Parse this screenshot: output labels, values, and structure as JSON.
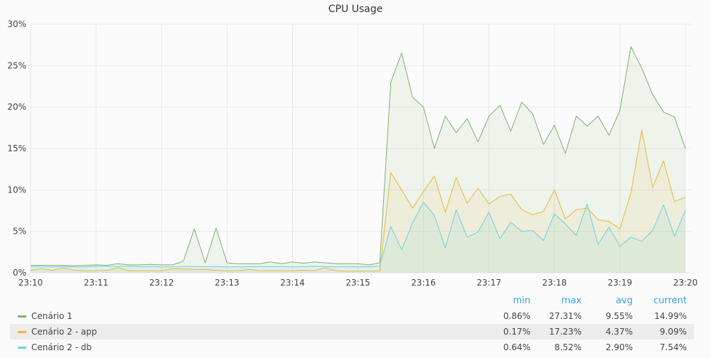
{
  "panel": {
    "title": "CPU Usage"
  },
  "colors": {
    "grid": "#e9e9e9",
    "axis_text": "#444444",
    "header_text": "#33a2e5"
  },
  "legend": {
    "headers": {
      "min": "min",
      "max": "max",
      "avg": "avg",
      "current": "current"
    },
    "rows": [
      {
        "name": "Cenário 1",
        "min": "0.86%",
        "max": "27.31%",
        "avg": "9.55%",
        "current": "14.99%"
      },
      {
        "name": "Cenário 2 - app",
        "min": "0.17%",
        "max": "17.23%",
        "avg": "4.37%",
        "current": "9.09%"
      },
      {
        "name": "Cenário 2 - db",
        "min": "0.64%",
        "max": "8.52%",
        "avg": "2.90%",
        "current": "7.54%"
      }
    ]
  },
  "chart_data": {
    "type": "area",
    "title": "CPU Usage",
    "x_unit": "minutes",
    "x_range": [
      "23:10",
      "23:20"
    ],
    "y_range": [
      0,
      30
    ],
    "ylim": [
      0,
      30
    ],
    "x_ticks": [
      "23:10",
      "23:11",
      "23:12",
      "23:13",
      "23:14",
      "23:15",
      "23:16",
      "23:17",
      "23:18",
      "23:19",
      "23:20"
    ],
    "y_ticks": [
      "0%",
      "5%",
      "10%",
      "15%",
      "20%",
      "25%",
      "30%"
    ],
    "x_tick_values": [
      0,
      1,
      2,
      3,
      4,
      5,
      6,
      7,
      8,
      9,
      10
    ],
    "y_tick_values": [
      0,
      5,
      10,
      15,
      20,
      25,
      30
    ],
    "grid": true,
    "legend_position": "bottom",
    "series": [
      {
        "name": "Cenário 1",
        "color": "#7eb26d",
        "points": [
          [
            0.0,
            0.9
          ],
          [
            0.167,
            0.9
          ],
          [
            0.333,
            0.9
          ],
          [
            0.5,
            0.9
          ],
          [
            0.667,
            0.85
          ],
          [
            0.833,
            0.9
          ],
          [
            1.0,
            0.95
          ],
          [
            1.167,
            0.9
          ],
          [
            1.333,
            1.1
          ],
          [
            1.5,
            0.95
          ],
          [
            1.667,
            0.95
          ],
          [
            1.833,
            1.0
          ],
          [
            2.0,
            0.95
          ],
          [
            2.167,
            0.95
          ],
          [
            2.333,
            1.4
          ],
          [
            2.5,
            5.3
          ],
          [
            2.667,
            1.2
          ],
          [
            2.833,
            5.4
          ],
          [
            3.0,
            1.2
          ],
          [
            3.167,
            1.1
          ],
          [
            3.333,
            1.1
          ],
          [
            3.5,
            1.1
          ],
          [
            3.667,
            1.3
          ],
          [
            3.833,
            1.1
          ],
          [
            4.0,
            1.3
          ],
          [
            4.167,
            1.15
          ],
          [
            4.333,
            1.3
          ],
          [
            4.5,
            1.2
          ],
          [
            4.667,
            1.1
          ],
          [
            4.833,
            1.1
          ],
          [
            5.0,
            1.1
          ],
          [
            5.167,
            0.95
          ],
          [
            5.333,
            1.2
          ],
          [
            5.5,
            23.0
          ],
          [
            5.667,
            26.5
          ],
          [
            5.833,
            21.2
          ],
          [
            6.0,
            20.0
          ],
          [
            6.167,
            15.0
          ],
          [
            6.333,
            18.9
          ],
          [
            6.5,
            16.9
          ],
          [
            6.667,
            18.6
          ],
          [
            6.833,
            15.8
          ],
          [
            7.0,
            18.9
          ],
          [
            7.167,
            20.2
          ],
          [
            7.333,
            17.1
          ],
          [
            7.5,
            20.6
          ],
          [
            7.667,
            19.2
          ],
          [
            7.833,
            15.5
          ],
          [
            8.0,
            17.8
          ],
          [
            8.167,
            14.4
          ],
          [
            8.333,
            18.9
          ],
          [
            8.5,
            17.7
          ],
          [
            8.667,
            18.9
          ],
          [
            8.833,
            16.6
          ],
          [
            9.0,
            19.6
          ],
          [
            9.167,
            27.3
          ],
          [
            9.333,
            24.7
          ],
          [
            9.5,
            21.5
          ],
          [
            9.667,
            19.4
          ],
          [
            9.833,
            18.8
          ],
          [
            10.0,
            14.99
          ]
        ]
      },
      {
        "name": "Cenário 2 - app",
        "color": "#eab839",
        "points": [
          [
            0.0,
            0.3
          ],
          [
            0.167,
            0.5
          ],
          [
            0.333,
            0.3
          ],
          [
            0.5,
            0.6
          ],
          [
            0.667,
            0.3
          ],
          [
            0.833,
            0.25
          ],
          [
            1.0,
            0.25
          ],
          [
            1.167,
            0.3
          ],
          [
            1.333,
            0.6
          ],
          [
            1.5,
            0.25
          ],
          [
            1.667,
            0.25
          ],
          [
            1.833,
            0.25
          ],
          [
            2.0,
            0.25
          ],
          [
            2.167,
            0.5
          ],
          [
            2.333,
            0.45
          ],
          [
            2.5,
            0.4
          ],
          [
            2.667,
            0.4
          ],
          [
            2.833,
            0.3
          ],
          [
            3.0,
            0.25
          ],
          [
            3.167,
            0.25
          ],
          [
            3.333,
            0.4
          ],
          [
            3.5,
            0.25
          ],
          [
            3.667,
            0.25
          ],
          [
            3.833,
            0.25
          ],
          [
            4.0,
            0.25
          ],
          [
            4.167,
            0.3
          ],
          [
            4.333,
            0.25
          ],
          [
            4.5,
            0.6
          ],
          [
            4.667,
            0.25
          ],
          [
            4.833,
            0.2
          ],
          [
            5.0,
            0.2
          ],
          [
            5.167,
            0.2
          ],
          [
            5.333,
            0.25
          ],
          [
            5.5,
            12.1
          ],
          [
            5.667,
            10.0
          ],
          [
            5.833,
            7.8
          ],
          [
            6.0,
            9.8
          ],
          [
            6.167,
            11.7
          ],
          [
            6.333,
            7.3
          ],
          [
            6.5,
            11.5
          ],
          [
            6.667,
            8.4
          ],
          [
            6.833,
            10.2
          ],
          [
            7.0,
            8.3
          ],
          [
            7.167,
            9.2
          ],
          [
            7.333,
            9.5
          ],
          [
            7.5,
            7.6
          ],
          [
            7.667,
            7.0
          ],
          [
            7.833,
            7.4
          ],
          [
            8.0,
            10.0
          ],
          [
            8.167,
            6.5
          ],
          [
            8.333,
            7.6
          ],
          [
            8.5,
            7.8
          ],
          [
            8.667,
            6.4
          ],
          [
            8.833,
            6.2
          ],
          [
            9.0,
            5.3
          ],
          [
            9.167,
            9.6
          ],
          [
            9.333,
            17.23
          ],
          [
            9.5,
            10.3
          ],
          [
            9.667,
            13.5
          ],
          [
            9.833,
            8.6
          ],
          [
            10.0,
            9.09
          ]
        ]
      },
      {
        "name": "Cenário 2 - db",
        "color": "#6ed0e0",
        "points": [
          [
            0.0,
            0.75
          ],
          [
            0.167,
            0.75
          ],
          [
            0.333,
            0.7
          ],
          [
            0.5,
            0.75
          ],
          [
            0.667,
            0.7
          ],
          [
            0.833,
            0.7
          ],
          [
            1.0,
            0.8
          ],
          [
            1.167,
            0.8
          ],
          [
            1.333,
            0.75
          ],
          [
            1.5,
            0.8
          ],
          [
            1.667,
            0.75
          ],
          [
            1.833,
            0.75
          ],
          [
            2.0,
            0.7
          ],
          [
            2.167,
            0.7
          ],
          [
            2.333,
            0.75
          ],
          [
            2.5,
            0.75
          ],
          [
            2.667,
            0.75
          ],
          [
            2.833,
            0.75
          ],
          [
            3.0,
            0.7
          ],
          [
            3.167,
            0.7
          ],
          [
            3.333,
            0.75
          ],
          [
            3.5,
            0.75
          ],
          [
            3.667,
            0.75
          ],
          [
            3.833,
            0.75
          ],
          [
            4.0,
            0.7
          ],
          [
            4.167,
            0.75
          ],
          [
            4.333,
            0.8
          ],
          [
            4.5,
            0.75
          ],
          [
            4.667,
            0.7
          ],
          [
            4.833,
            0.75
          ],
          [
            5.0,
            0.7
          ],
          [
            5.167,
            0.75
          ],
          [
            5.333,
            0.8
          ],
          [
            5.5,
            5.6
          ],
          [
            5.667,
            2.8
          ],
          [
            5.833,
            6.0
          ],
          [
            6.0,
            8.52
          ],
          [
            6.167,
            6.9
          ],
          [
            6.333,
            3.0
          ],
          [
            6.5,
            7.6
          ],
          [
            6.667,
            4.3
          ],
          [
            6.833,
            4.9
          ],
          [
            7.0,
            7.3
          ],
          [
            7.167,
            4.1
          ],
          [
            7.333,
            6.1
          ],
          [
            7.5,
            5.0
          ],
          [
            7.667,
            5.1
          ],
          [
            7.833,
            3.9
          ],
          [
            8.0,
            7.1
          ],
          [
            8.167,
            5.9
          ],
          [
            8.333,
            4.5
          ],
          [
            8.5,
            8.3
          ],
          [
            8.667,
            3.4
          ],
          [
            8.833,
            5.5
          ],
          [
            9.0,
            3.2
          ],
          [
            9.167,
            4.3
          ],
          [
            9.333,
            3.8
          ],
          [
            9.5,
            5.1
          ],
          [
            9.667,
            8.2
          ],
          [
            9.833,
            4.4
          ],
          [
            10.0,
            7.54
          ]
        ]
      }
    ]
  }
}
